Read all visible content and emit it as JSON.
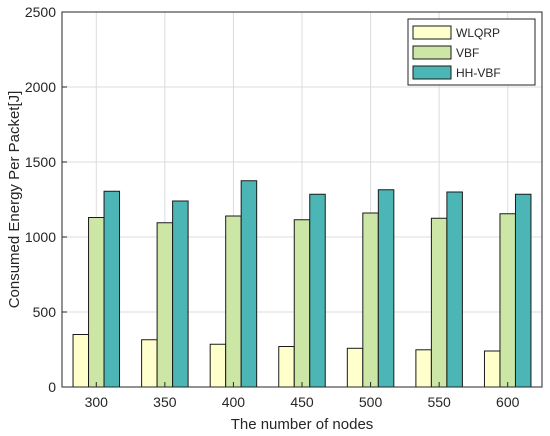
{
  "chart_data": {
    "type": "bar",
    "title": "",
    "xlabel": "The number of nodes",
    "ylabel": "Consumed Energy Per Packet[J]",
    "ylim": [
      0,
      2500
    ],
    "yticks": [
      0,
      500,
      1000,
      1500,
      2000,
      2500
    ],
    "grid": true,
    "legend_position": "top-right",
    "categories": [
      "300",
      "350",
      "400",
      "450",
      "500",
      "550",
      "600"
    ],
    "series": [
      {
        "name": "WLQRP",
        "color": "#ffffcc",
        "values": [
          350,
          315,
          285,
          270,
          258,
          248,
          240
        ]
      },
      {
        "name": "VBF",
        "color": "#cce6a5",
        "values": [
          1130,
          1095,
          1140,
          1115,
          1160,
          1125,
          1155
        ]
      },
      {
        "name": "HH-VBF",
        "color": "#4cb5b5",
        "values": [
          1305,
          1240,
          1375,
          1285,
          1315,
          1300,
          1285
        ]
      }
    ]
  }
}
